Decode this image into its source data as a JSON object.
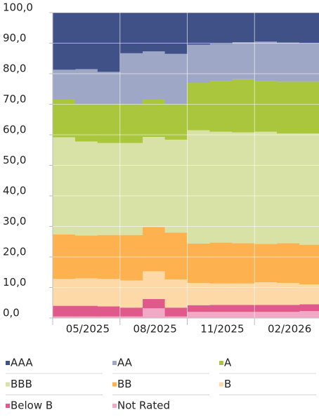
{
  "chart_data": {
    "type": "bar",
    "stacked": true,
    "categories": [
      null,
      "05/2025",
      null,
      null,
      "08/2025",
      null,
      null,
      "11/2025",
      null,
      null,
      "02/2026",
      null
    ],
    "series": [
      {
        "name": "Not Rated",
        "color": "#f2a9c6",
        "values": [
          0.5,
          0.5,
          0.5,
          0.5,
          3.2,
          0.5,
          2.0,
          2.0,
          2.0,
          2.0,
          2.0,
          2.3
        ]
      },
      {
        "name": "Below B",
        "color": "#df5a8b",
        "values": [
          3.5,
          3.5,
          3.3,
          2.9,
          3.0,
          2.9,
          2.2,
          2.3,
          2.3,
          2.3,
          2.3,
          2.2
        ]
      },
      {
        "name": "B",
        "color": "#fdd9a8",
        "values": [
          8.8,
          9.0,
          9.0,
          8.9,
          9.1,
          9.2,
          7.3,
          7.0,
          7.0,
          7.4,
          7.2,
          6.5
        ]
      },
      {
        "name": "BB",
        "color": "#fdb14f",
        "values": [
          14.6,
          14.0,
          14.4,
          14.9,
          14.5,
          15.4,
          12.9,
          13.4,
          13.2,
          12.6,
          13.0,
          13.0
        ]
      },
      {
        "name": "BBB",
        "color": "#d9e2a6",
        "values": [
          31.8,
          30.8,
          30.1,
          30.1,
          29.5,
          30.4,
          37.1,
          36.3,
          36.3,
          36.7,
          35.9,
          36.4
        ]
      },
      {
        "name": "A",
        "color": "#a9c63c",
        "values": [
          12.3,
          12.2,
          12.7,
          12.7,
          12.2,
          11.6,
          15.5,
          16.6,
          17.4,
          16.6,
          17.0,
          17.0
        ]
      },
      {
        "name": "AA",
        "color": "#9fa7c6",
        "values": [
          9.8,
          11.5,
          10.6,
          16.7,
          15.8,
          16.5,
          12.5,
          12.2,
          12.1,
          12.9,
          12.8,
          12.6
        ]
      },
      {
        "name": "AAA",
        "color": "#3f5187",
        "values": [
          18.7,
          18.5,
          19.4,
          13.3,
          12.7,
          13.5,
          10.5,
          10.2,
          9.7,
          9.5,
          9.8,
          10.0
        ]
      }
    ],
    "ylim": [
      0,
      100
    ],
    "yticks": [
      {
        "value": 0,
        "label": "0,0"
      },
      {
        "value": 10,
        "label": "10,0"
      },
      {
        "value": 20,
        "label": "20,0"
      },
      {
        "value": 30,
        "label": "30,0"
      },
      {
        "value": 40,
        "label": "40,0"
      },
      {
        "value": 50,
        "label": "50,0"
      },
      {
        "value": 60,
        "label": "60,0"
      },
      {
        "value": 70,
        "label": "70,0"
      },
      {
        "value": 80,
        "label": "80,0"
      },
      {
        "value": 90,
        "label": "90,0"
      },
      {
        "value": 100,
        "label": "100,0"
      }
    ],
    "grid": true,
    "legend": "bottom"
  }
}
